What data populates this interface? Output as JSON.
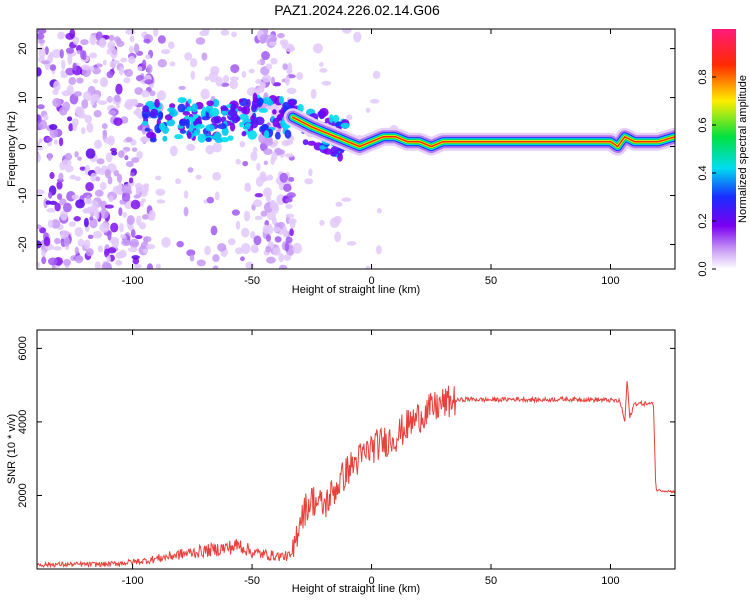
{
  "title": "PAZ1.2024.226.02.14.G06",
  "chart_data": [
    {
      "type": "heatmap",
      "xlabel": "Height of straight line (km)",
      "ylabel": "Frequency (Hz)",
      "xlim": [
        -140,
        127
      ],
      "ylim": [
        -25,
        24
      ],
      "x_ticks": [
        -100,
        -50,
        0,
        50,
        100
      ],
      "y_ticks": [
        -20,
        -10,
        0,
        10,
        20
      ],
      "grid": false,
      "colorbar": {
        "label": "Normalized spectral amplitude",
        "range": [
          0,
          1
        ],
        "ticks": [
          0.0,
          0.2,
          0.4,
          0.6,
          0.8
        ],
        "colormap": "rainbow (white-violet-blue-cyan-green-yellow-red-pink)"
      },
      "ridge": {
        "x": [
          -95,
          -80,
          -65,
          -55,
          -45,
          -33,
          -25,
          -15,
          -10,
          -5,
          0,
          5,
          10,
          15,
          20,
          25,
          30,
          40,
          50,
          60,
          70,
          80,
          90,
          95,
          100,
          103,
          106,
          110,
          120,
          127
        ],
        "y": [
          5,
          6,
          5,
          6,
          6,
          6,
          4,
          2,
          1,
          0,
          1,
          2,
          2,
          1,
          1,
          0,
          1,
          1,
          1,
          1,
          1,
          1,
          1,
          1,
          1,
          0,
          2,
          1,
          1,
          2
        ]
      }
    },
    {
      "type": "line",
      "xlabel": "Height of straight line (km)",
      "ylabel": "SNR (10 * v/v)",
      "xlim": [
        -140,
        127
      ],
      "ylim": [
        0,
        6500
      ],
      "x_ticks": [
        -100,
        -50,
        0,
        50,
        100
      ],
      "y_ticks": [
        2000,
        4000,
        6000
      ],
      "grid": false,
      "series": [
        {
          "color": "#e8403a",
          "x": [
            -140,
            -110,
            -95,
            -80,
            -60,
            -55,
            -50,
            -40,
            -33,
            -30,
            -25,
            -20,
            -15,
            -10,
            -5,
            0,
            5,
            10,
            15,
            20,
            25,
            30,
            35,
            40,
            50,
            60,
            70,
            80,
            90,
            100,
            104,
            106,
            107,
            108,
            110,
            115,
            118,
            119,
            127
          ],
          "y": [
            120,
            130,
            220,
            400,
            580,
            650,
            450,
            350,
            350,
            1400,
            1900,
            1700,
            2200,
            2700,
            3000,
            3300,
            3450,
            3600,
            3900,
            4150,
            4350,
            4500,
            4580,
            4620,
            4600,
            4620,
            4600,
            4620,
            4610,
            4590,
            4560,
            4000,
            5200,
            4100,
            4500,
            4500,
            4480,
            2150,
            2100
          ]
        }
      ]
    }
  ]
}
